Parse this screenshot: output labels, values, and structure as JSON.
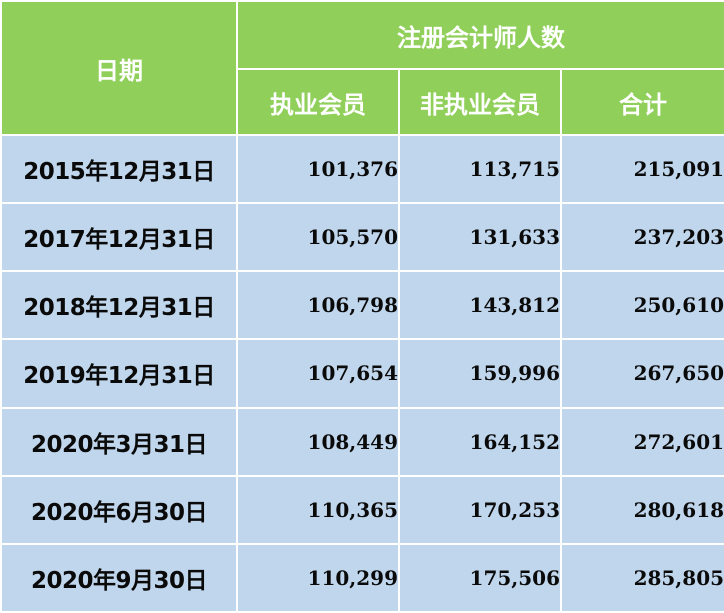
{
  "colors": {
    "header_bg": "#8fcf5a",
    "header_text": "#ffffff",
    "cell_bg": "#c0d6ec",
    "cell_text": "#0a0a0a",
    "grid_lines": "#ffffff"
  },
  "table": {
    "date_header": "日期",
    "group_header": "注册会计师人数",
    "sub_headers": [
      "执业会员",
      "非执业会员",
      "合计"
    ],
    "rows": [
      {
        "date": "2015年12月31日",
        "practicing": "101,376",
        "non_practicing": "113,715",
        "total": "215,091"
      },
      {
        "date": "2017年12月31日",
        "practicing": "105,570",
        "non_practicing": "131,633",
        "total": "237,203"
      },
      {
        "date": "2018年12月31日",
        "practicing": "106,798",
        "non_practicing": "143,812",
        "total": "250,610"
      },
      {
        "date": "2019年12月31日",
        "practicing": "107,654",
        "non_practicing": "159,996",
        "total": "267,650"
      },
      {
        "date": "2020年3月31日",
        "practicing": "108,449",
        "non_practicing": "164,152",
        "total": "272,601"
      },
      {
        "date": "2020年6月30日",
        "practicing": "110,365",
        "non_practicing": "170,253",
        "total": "280,618"
      },
      {
        "date": "2020年9月30日",
        "practicing": "110,299",
        "non_practicing": "175,506",
        "total": "285,805"
      }
    ]
  }
}
